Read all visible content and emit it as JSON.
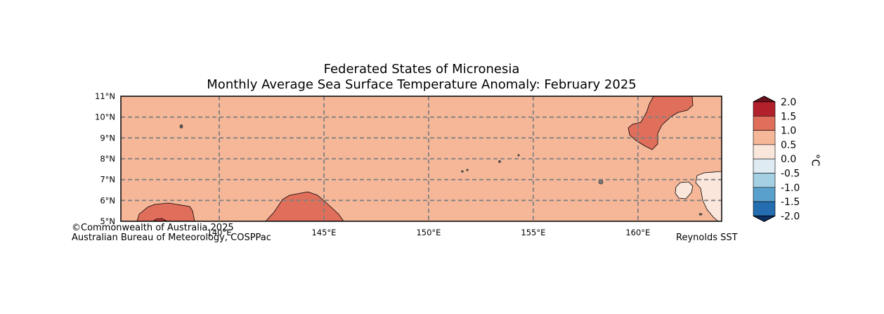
{
  "title": {
    "line1": "Federated States of Micronesia",
    "line2": "Monthly Average Sea Surface Temperature Anomaly: February 2025"
  },
  "map": {
    "lat_labels": [
      "11°N",
      "10°N",
      "9°N",
      "8°N",
      "7°N",
      "6°N",
      "5°N"
    ],
    "lon_labels": [
      "140°E",
      "145°E",
      "150°E",
      "155°E",
      "160°E"
    ],
    "lat_range": [
      5,
      11
    ],
    "lon_range": [
      135.3,
      164.0
    ],
    "background_class_color": "#f6b799",
    "anomaly_regions": [
      {
        "name": "west-warm-patch",
        "category": "1.0 to 1.5",
        "color": "#df6f5a"
      },
      {
        "name": "central-warm-patch",
        "category": "1.0 to 1.5",
        "color": "#df6f5a"
      },
      {
        "name": "northeast-warm-patch",
        "category": "1.0 to 1.5",
        "color": "#df6f5a"
      },
      {
        "name": "southeast-cool-patch",
        "category": "0.0 to 0.5",
        "color": "#fbe6dc"
      }
    ]
  },
  "legend": {
    "unit": "°C",
    "ticks": [
      "2.0",
      "1.5",
      "1.0",
      "0.5",
      "0.0",
      "-0.5",
      "-1.0",
      "-1.5",
      "-2.0"
    ],
    "colors": [
      "#b2202c",
      "#df6f5a",
      "#f6b799",
      "#fbe6dc",
      "#deebf3",
      "#a5cfe3",
      "#5aa0cd",
      "#246db0"
    ],
    "extend_top_color": "#6b0f1d",
    "extend_bottom_color": "#0c2f63"
  },
  "footer": {
    "copyright": "©Commonwealth of Australia 2025",
    "agency": "Australian Bureau of Meteorology, COSPPac",
    "source": "Reynolds SST"
  }
}
